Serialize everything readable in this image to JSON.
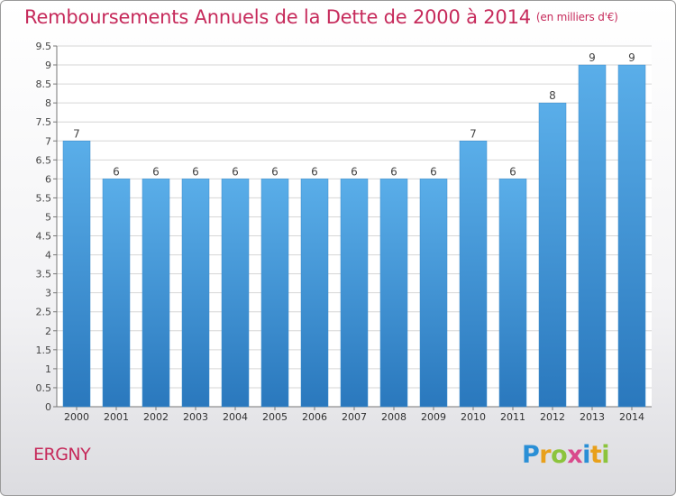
{
  "header": {
    "title": "Remboursements Annuels de la Dette de 2000 à 2014",
    "subtitle": "(en milliers d'€)"
  },
  "footer": {
    "place": "ERGNY",
    "logo_letters": [
      "P",
      "r",
      "o",
      "x",
      "i",
      "t",
      "i"
    ]
  },
  "colors": {
    "title": "#c62a5b",
    "bar_top": "#5aaee9",
    "bar_bottom": "#2a78bd",
    "grid": "#d6d6d6"
  },
  "chart_data": {
    "type": "bar",
    "title": "Remboursements Annuels de la Dette de 2000 à 2014",
    "subtitle": "(en milliers d'€)",
    "categories": [
      "2000",
      "2001",
      "2002",
      "2003",
      "2004",
      "2005",
      "2006",
      "2007",
      "2008",
      "2009",
      "2010",
      "2011",
      "2012",
      "2013",
      "2014"
    ],
    "values": [
      7,
      6,
      6,
      6,
      6,
      6,
      6,
      6,
      6,
      6,
      7,
      6,
      8,
      9,
      9
    ],
    "y_ticks": [
      "0",
      "0.5",
      "1",
      "1.5",
      "2",
      "2.5",
      "3",
      "3.5",
      "4",
      "4.5",
      "5",
      "5.5",
      "6",
      "6.5",
      "7",
      "7.5",
      "8",
      "8.5",
      "9",
      "9.5"
    ],
    "ylim": [
      0,
      9.5
    ],
    "grid": true,
    "legend": "none"
  }
}
